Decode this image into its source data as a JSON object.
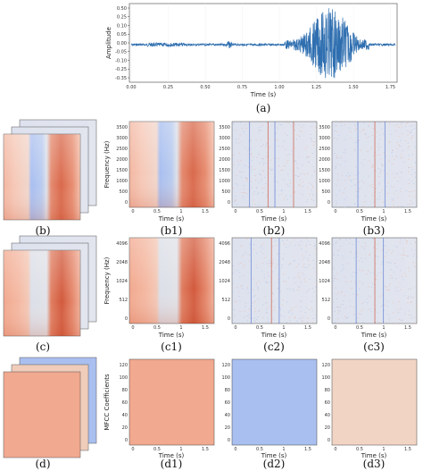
{
  "panel_a": {
    "caption": "(a)",
    "xlabel": "Time (s)",
    "ylabel": "Amplitude",
    "xticks": [
      "0.00",
      "0.25",
      "0.50",
      "0.75",
      "1.00",
      "1.25",
      "1.50",
      "1.75"
    ],
    "yticks": [
      "0.50",
      "0.25",
      "0.10",
      "0.05",
      "0.00",
      "-0.05",
      "-0.10",
      "-0.25",
      "-0.35"
    ]
  },
  "row_b": {
    "captions": [
      "(b)",
      "(b1)",
      "(b2)",
      "(b3)"
    ],
    "xlabel": "Time (s)",
    "ylabel": "Frequency (Hz)",
    "xticks": [
      "0",
      "0.5",
      "1",
      "1.5"
    ],
    "yticks": [
      "3500",
      "3000",
      "2500",
      "2000",
      "1500",
      "1000",
      "500",
      "0"
    ]
  },
  "row_c": {
    "captions": [
      "(c)",
      "(c1)",
      "(c2)",
      "(c3)"
    ],
    "xlabel": "Time (s)",
    "ylabel": "Frequency (Hz)",
    "xticks": [
      "0",
      "0.5",
      "1",
      "1.5"
    ],
    "yticks": [
      "4096",
      "2048",
      "1024",
      "512",
      "0"
    ]
  },
  "row_d": {
    "captions": [
      "(d)",
      "(d1)",
      "(d2)",
      "(d3)"
    ],
    "xlabel": "Time (s)",
    "ylabel": "MFCC Coefficients",
    "xticks": [
      "0",
      "0.5",
      "1",
      "1.5"
    ],
    "yticks": [
      "120",
      "100",
      "80",
      "60",
      "40",
      "20",
      "0"
    ]
  },
  "colors": {
    "waveform": "#2f6fb0",
    "red_dark": "#b4361c",
    "red_mid": "#e7836a",
    "red_light": "#f6c7b4",
    "neutral": "#dfe3ee",
    "blue_light": "#aec4ee",
    "blue_mid": "#7f9fe4",
    "d1_fill": "#f1a98f",
    "d2_fill": "#a8bff0",
    "d3_fill": "#f1d4c4"
  }
}
